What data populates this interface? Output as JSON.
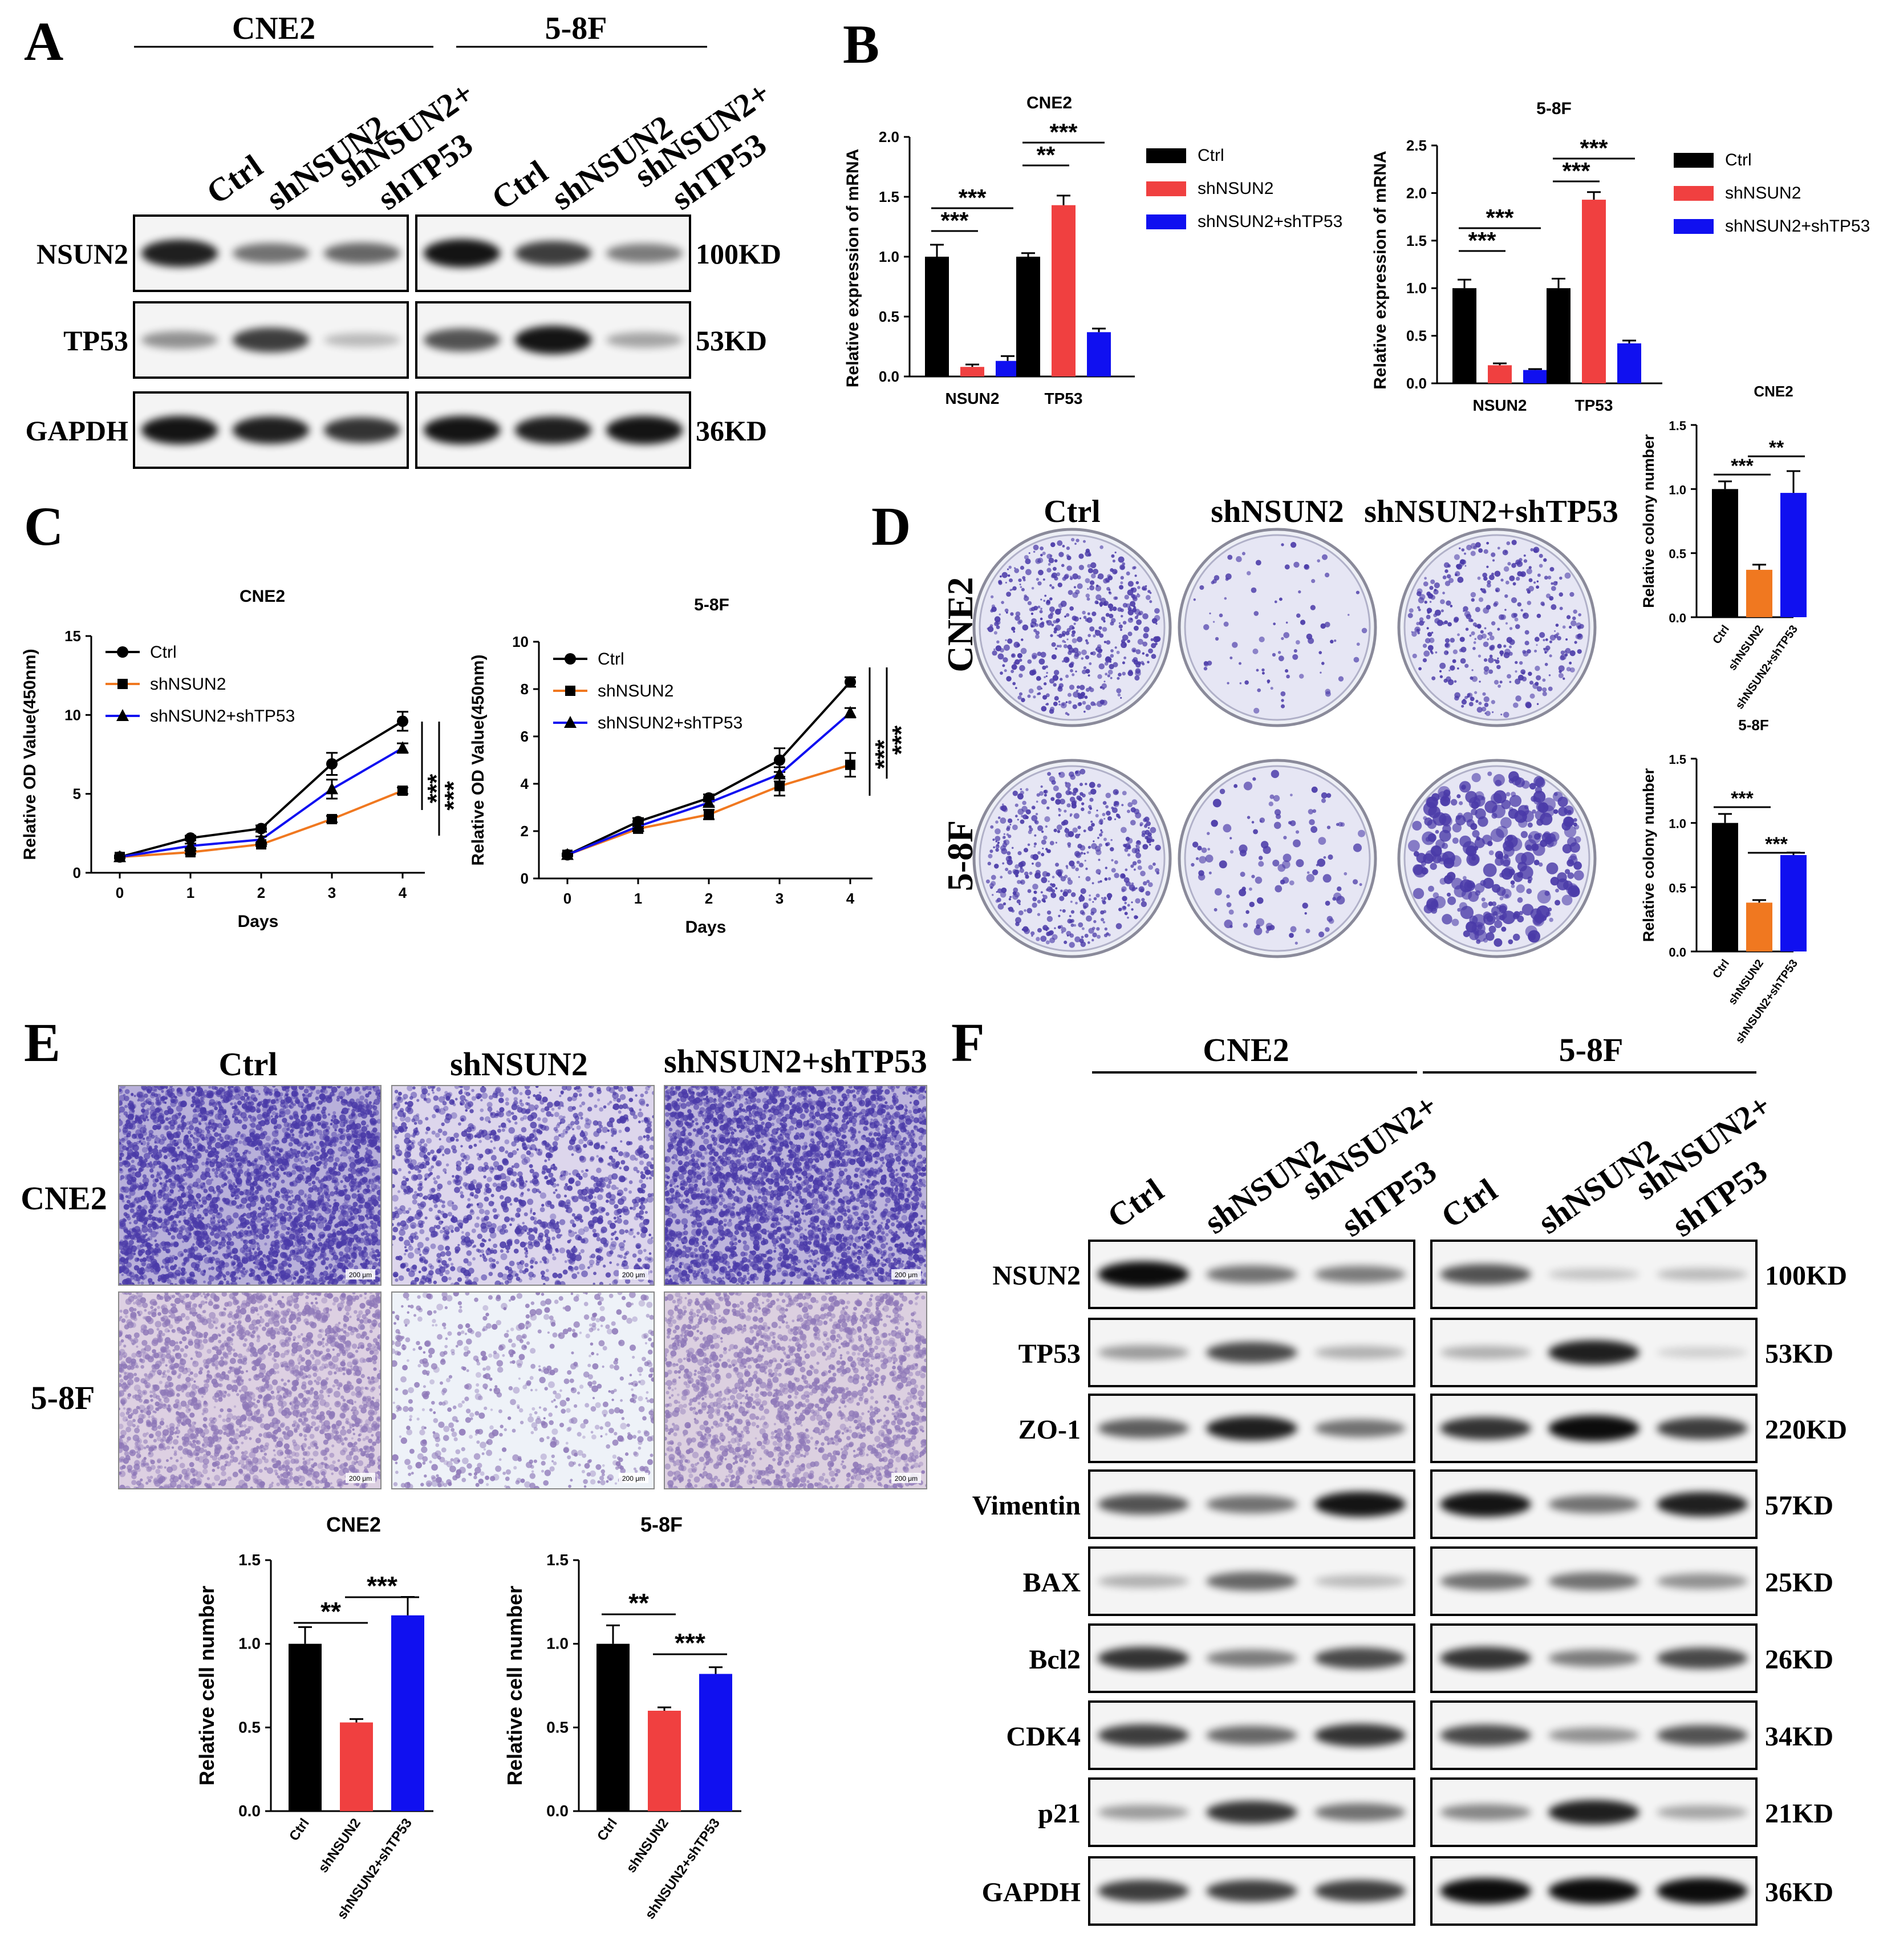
{
  "colors": {
    "ctrl": "#000000",
    "shnsun2": "#f04040",
    "shnsun2_orange": "#f07820",
    "shnsun2_shtp53": "#1010f0",
    "stain": "#4a3aa8",
    "stain_light": "#8e78b8"
  },
  "groups": [
    "Ctrl",
    "shNSUN2",
    "shNSUN2+shTP53"
  ],
  "panelA": {
    "letter": "A",
    "cell_lines": [
      "CNE2",
      "5-8F"
    ],
    "lane_labels": [
      "Ctrl",
      "shNSUN2",
      "shNSUN2+",
      "shTP53"
    ],
    "rows": [
      {
        "protein": "NSUN2",
        "size": "100KD"
      },
      {
        "protein": "TP53",
        "size": "53KD"
      },
      {
        "protein": "GAPDH",
        "size": "36KD"
      }
    ]
  },
  "panelB": {
    "letter": "B"
  },
  "panelC": {
    "letter": "C"
  },
  "panelD": {
    "letter": "D",
    "column_labels": [
      "Ctrl",
      "shNSUN2",
      "shNSUN2+shTP53"
    ],
    "row_labels": [
      "CNE2",
      "5-8F"
    ]
  },
  "panelE": {
    "letter": "E",
    "column_labels": [
      "Ctrl",
      "shNSUN2",
      "shNSUN2+shTP53"
    ],
    "row_labels": [
      "CNE2",
      "5-8F"
    ],
    "scale_bar": "200 μm"
  },
  "panelF": {
    "letter": "F",
    "cell_lines": [
      "CNE2",
      "5-8F"
    ],
    "lane_labels": [
      "Ctrl",
      "shNSUN2",
      "shNSUN2+",
      "shTP53"
    ],
    "rows": [
      {
        "protein": "NSUN2",
        "size": "100KD"
      },
      {
        "protein": "TP53",
        "size": "53KD"
      },
      {
        "protein": "ZO-1",
        "size": "220KD"
      },
      {
        "protein": "Vimentin",
        "size": "57KD"
      },
      {
        "protein": "BAX",
        "size": "25KD"
      },
      {
        "protein": "Bcl2",
        "size": "26KD"
      },
      {
        "protein": "CDK4",
        "size": "34KD"
      },
      {
        "protein": "p21",
        "size": "21KD"
      },
      {
        "protein": "GAPDH",
        "size": "36KD"
      }
    ]
  },
  "chart_data": [
    {
      "id": "B-CNE2",
      "type": "bar",
      "title": "CNE2",
      "ylabel": "Relative expression of mRNA",
      "ylim": [
        0,
        2.0
      ],
      "yticks": [
        "0.0",
        "0.5",
        "1.0",
        "1.5",
        "2.0"
      ],
      "categories": [
        "NSUN2",
        "TP53"
      ],
      "legend": [
        "Ctrl",
        "shNSUN2",
        "shNSUN2+shTP53"
      ],
      "series": [
        {
          "name": "Ctrl",
          "values": [
            1.0,
            1.0
          ],
          "errors": [
            0.1,
            0.03
          ]
        },
        {
          "name": "shNSUN2",
          "values": [
            0.08,
            1.43
          ],
          "errors": [
            0.02,
            0.08
          ]
        },
        {
          "name": "shNSUN2+shTP53",
          "values": [
            0.13,
            0.37
          ],
          "errors": [
            0.04,
            0.03
          ]
        }
      ],
      "annotations": [
        "***",
        "***",
        "**",
        "***"
      ]
    },
    {
      "id": "B-5-8F",
      "type": "bar",
      "title": "5-8F",
      "ylabel": "Relative expression of mRNA",
      "ylim": [
        0,
        2.5
      ],
      "yticks": [
        "0.0",
        "0.5",
        "1.0",
        "1.5",
        "2.0",
        "2.5"
      ],
      "categories": [
        "NSUN2",
        "TP53"
      ],
      "legend": [
        "Ctrl",
        "shNSUN2",
        "shNSUN2+shTP53"
      ],
      "series": [
        {
          "name": "Ctrl",
          "values": [
            1.0,
            1.0
          ],
          "errors": [
            0.09,
            0.1
          ]
        },
        {
          "name": "shNSUN2",
          "values": [
            0.19,
            1.93
          ],
          "errors": [
            0.02,
            0.08
          ]
        },
        {
          "name": "shNSUN2+shTP53",
          "values": [
            0.14,
            0.42
          ],
          "errors": [
            0.01,
            0.03
          ]
        }
      ],
      "annotations": [
        "***",
        "***",
        "***",
        "***"
      ]
    },
    {
      "id": "C-CNE2",
      "type": "line",
      "title": "CNE2",
      "xlabel": "Days",
      "ylabel": "Relative OD Value(450nm)",
      "x": [
        0,
        1,
        2,
        3,
        4
      ],
      "ylim": [
        0,
        15
      ],
      "yticks": [
        "0",
        "5",
        "10",
        "15"
      ],
      "series": [
        {
          "name": "Ctrl",
          "values": [
            1.0,
            2.2,
            2.8,
            6.9,
            9.6
          ],
          "errors": [
            0.1,
            0.15,
            0.2,
            0.7,
            0.6
          ]
        },
        {
          "name": "shNSUN2",
          "values": [
            1.0,
            1.3,
            1.8,
            3.4,
            5.2
          ],
          "errors": [
            0.05,
            0.1,
            0.1,
            0.2,
            0.2
          ]
        },
        {
          "name": "shNSUN2+shTP53",
          "values": [
            1.0,
            1.7,
            2.1,
            5.3,
            7.9
          ],
          "errors": [
            0.05,
            0.15,
            0.2,
            0.6,
            0.3
          ]
        }
      ],
      "annotations": [
        "***",
        "***"
      ]
    },
    {
      "id": "C-5-8F",
      "type": "line",
      "title": "5-8F",
      "xlabel": "Days",
      "ylabel": "Relative OD Value(450nm)",
      "x": [
        0,
        1,
        2,
        3,
        4
      ],
      "ylim": [
        0,
        10
      ],
      "yticks": [
        "0",
        "2",
        "4",
        "6",
        "8",
        "10"
      ],
      "series": [
        {
          "name": "Ctrl",
          "values": [
            1.0,
            2.4,
            3.4,
            5.0,
            8.3
          ],
          "errors": [
            0.05,
            0.15,
            0.15,
            0.5,
            0.2
          ]
        },
        {
          "name": "shNSUN2",
          "values": [
            1.0,
            2.1,
            2.7,
            3.9,
            4.8
          ],
          "errors": [
            0.05,
            0.1,
            0.2,
            0.4,
            0.5
          ]
        },
        {
          "name": "shNSUN2+shTP53",
          "values": [
            1.0,
            2.2,
            3.2,
            4.4,
            7.0
          ],
          "errors": [
            0.05,
            0.1,
            0.15,
            0.3,
            0.2
          ]
        }
      ],
      "annotations": [
        "***",
        "***"
      ]
    },
    {
      "id": "D-CNE2",
      "type": "bar",
      "title": "CNE2",
      "ylabel": "Relative colony number",
      "ylim": [
        0,
        1.5
      ],
      "yticks": [
        "0.0",
        "0.5",
        "1.0",
        "1.5"
      ],
      "categories": [
        "Ctrl",
        "shNSUN2",
        "shNSUN2+shTP53"
      ],
      "values": [
        1.0,
        0.37,
        0.97
      ],
      "errors": [
        0.06,
        0.04,
        0.17
      ],
      "annotations": [
        "***",
        "**"
      ]
    },
    {
      "id": "D-5-8F",
      "type": "bar",
      "title": "5-8F",
      "ylabel": "Relative colony number",
      "ylim": [
        0,
        1.5
      ],
      "yticks": [
        "0.0",
        "0.5",
        "1.0",
        "1.5"
      ],
      "categories": [
        "Ctrl",
        "shNSUN2",
        "shNSUN2+shTP53"
      ],
      "values": [
        1.0,
        0.38,
        0.75
      ],
      "errors": [
        0.07,
        0.02,
        0.02
      ],
      "annotations": [
        "***",
        "***"
      ]
    },
    {
      "id": "E-CNE2",
      "type": "bar",
      "title": "CNE2",
      "ylabel": "Relative cell number",
      "ylim": [
        0,
        1.5
      ],
      "yticks": [
        "0.0",
        "0.5",
        "1.0",
        "1.5"
      ],
      "categories": [
        "Ctrl",
        "shNSUN2",
        "shNSUN2+shTP53"
      ],
      "values": [
        1.0,
        0.53,
        1.17
      ],
      "errors": [
        0.1,
        0.02,
        0.11
      ],
      "annotations": [
        "**",
        "***"
      ]
    },
    {
      "id": "E-5-8F",
      "type": "bar",
      "title": "5-8F",
      "ylabel": "Relative cell number",
      "ylim": [
        0,
        1.5
      ],
      "yticks": [
        "0.0",
        "0.5",
        "1.0",
        "1.5"
      ],
      "categories": [
        "Ctrl",
        "shNSUN2",
        "shNSUN2+shTP53"
      ],
      "values": [
        1.0,
        0.6,
        0.82
      ],
      "errors": [
        0.11,
        0.02,
        0.04
      ],
      "annotations": [
        "**",
        "***"
      ]
    }
  ]
}
